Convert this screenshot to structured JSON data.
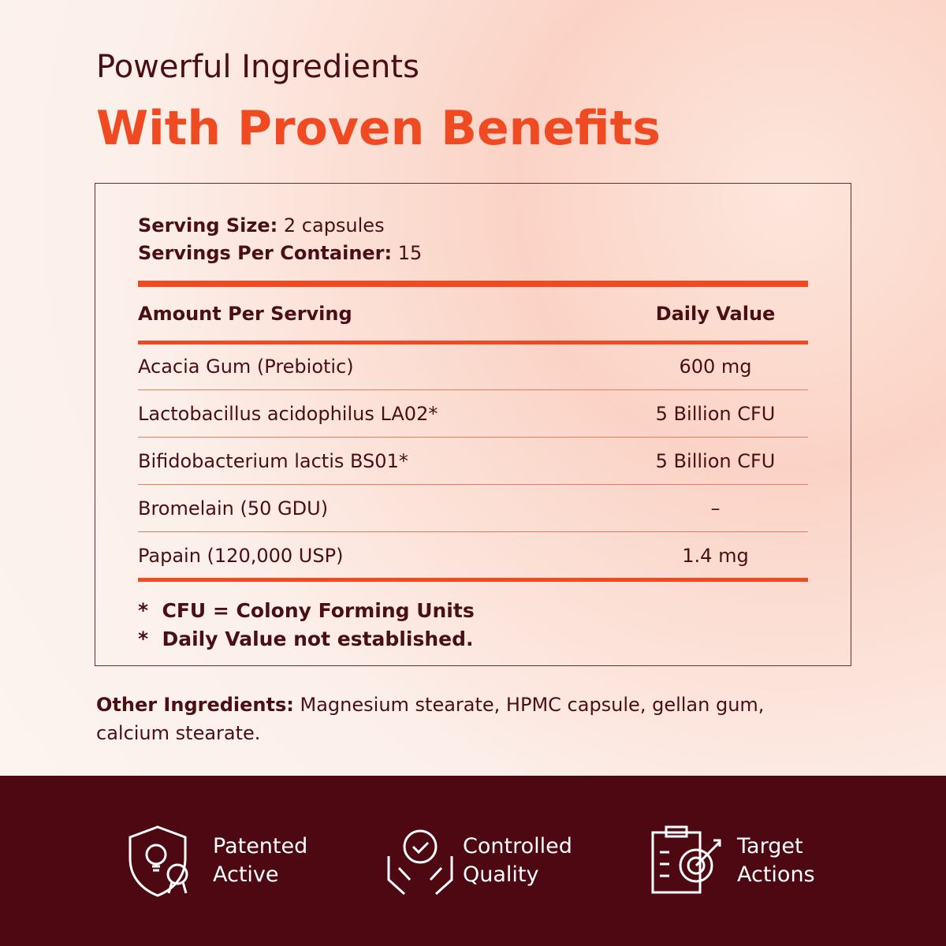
{
  "header": {
    "title": "Powerful Ingredients",
    "subtitle": "With Proven Benefits"
  },
  "panel": {
    "serving_size": {
      "label": "Serving Size:",
      "value": "2 capsules"
    },
    "servings_per_container": {
      "label": "Servings Per Container:",
      "value": "15"
    },
    "table": {
      "header": [
        "Amount Per Serving",
        "Daily Value"
      ],
      "rows": [
        [
          "Acacia Gum (Prebiotic)",
          "600 mg"
        ],
        [
          "Lactobacillus acidophilus LA02*",
          "5 Billion CFU"
        ],
        [
          "Bifidobacterium lactis BS01*",
          "5 Billion CFU"
        ],
        [
          "Bromelain (50 GDU)",
          "–"
        ],
        [
          "Papain (120,000 USP)",
          "1.4 mg"
        ]
      ]
    },
    "notes": [
      "*  CFU = Colony Forming Units",
      "*  Daily Value not established."
    ]
  },
  "other_ingredients": {
    "label": "Other Ingredients:",
    "text": "Magnesium stearate, HPMC capsule, gellan gum, calcium stearate."
  },
  "features": [
    {
      "lines": [
        "Patented",
        "Active"
      ]
    },
    {
      "lines": [
        "Controlled",
        "Quality"
      ]
    },
    {
      "lines": [
        "Target",
        "Actions"
      ]
    }
  ]
}
